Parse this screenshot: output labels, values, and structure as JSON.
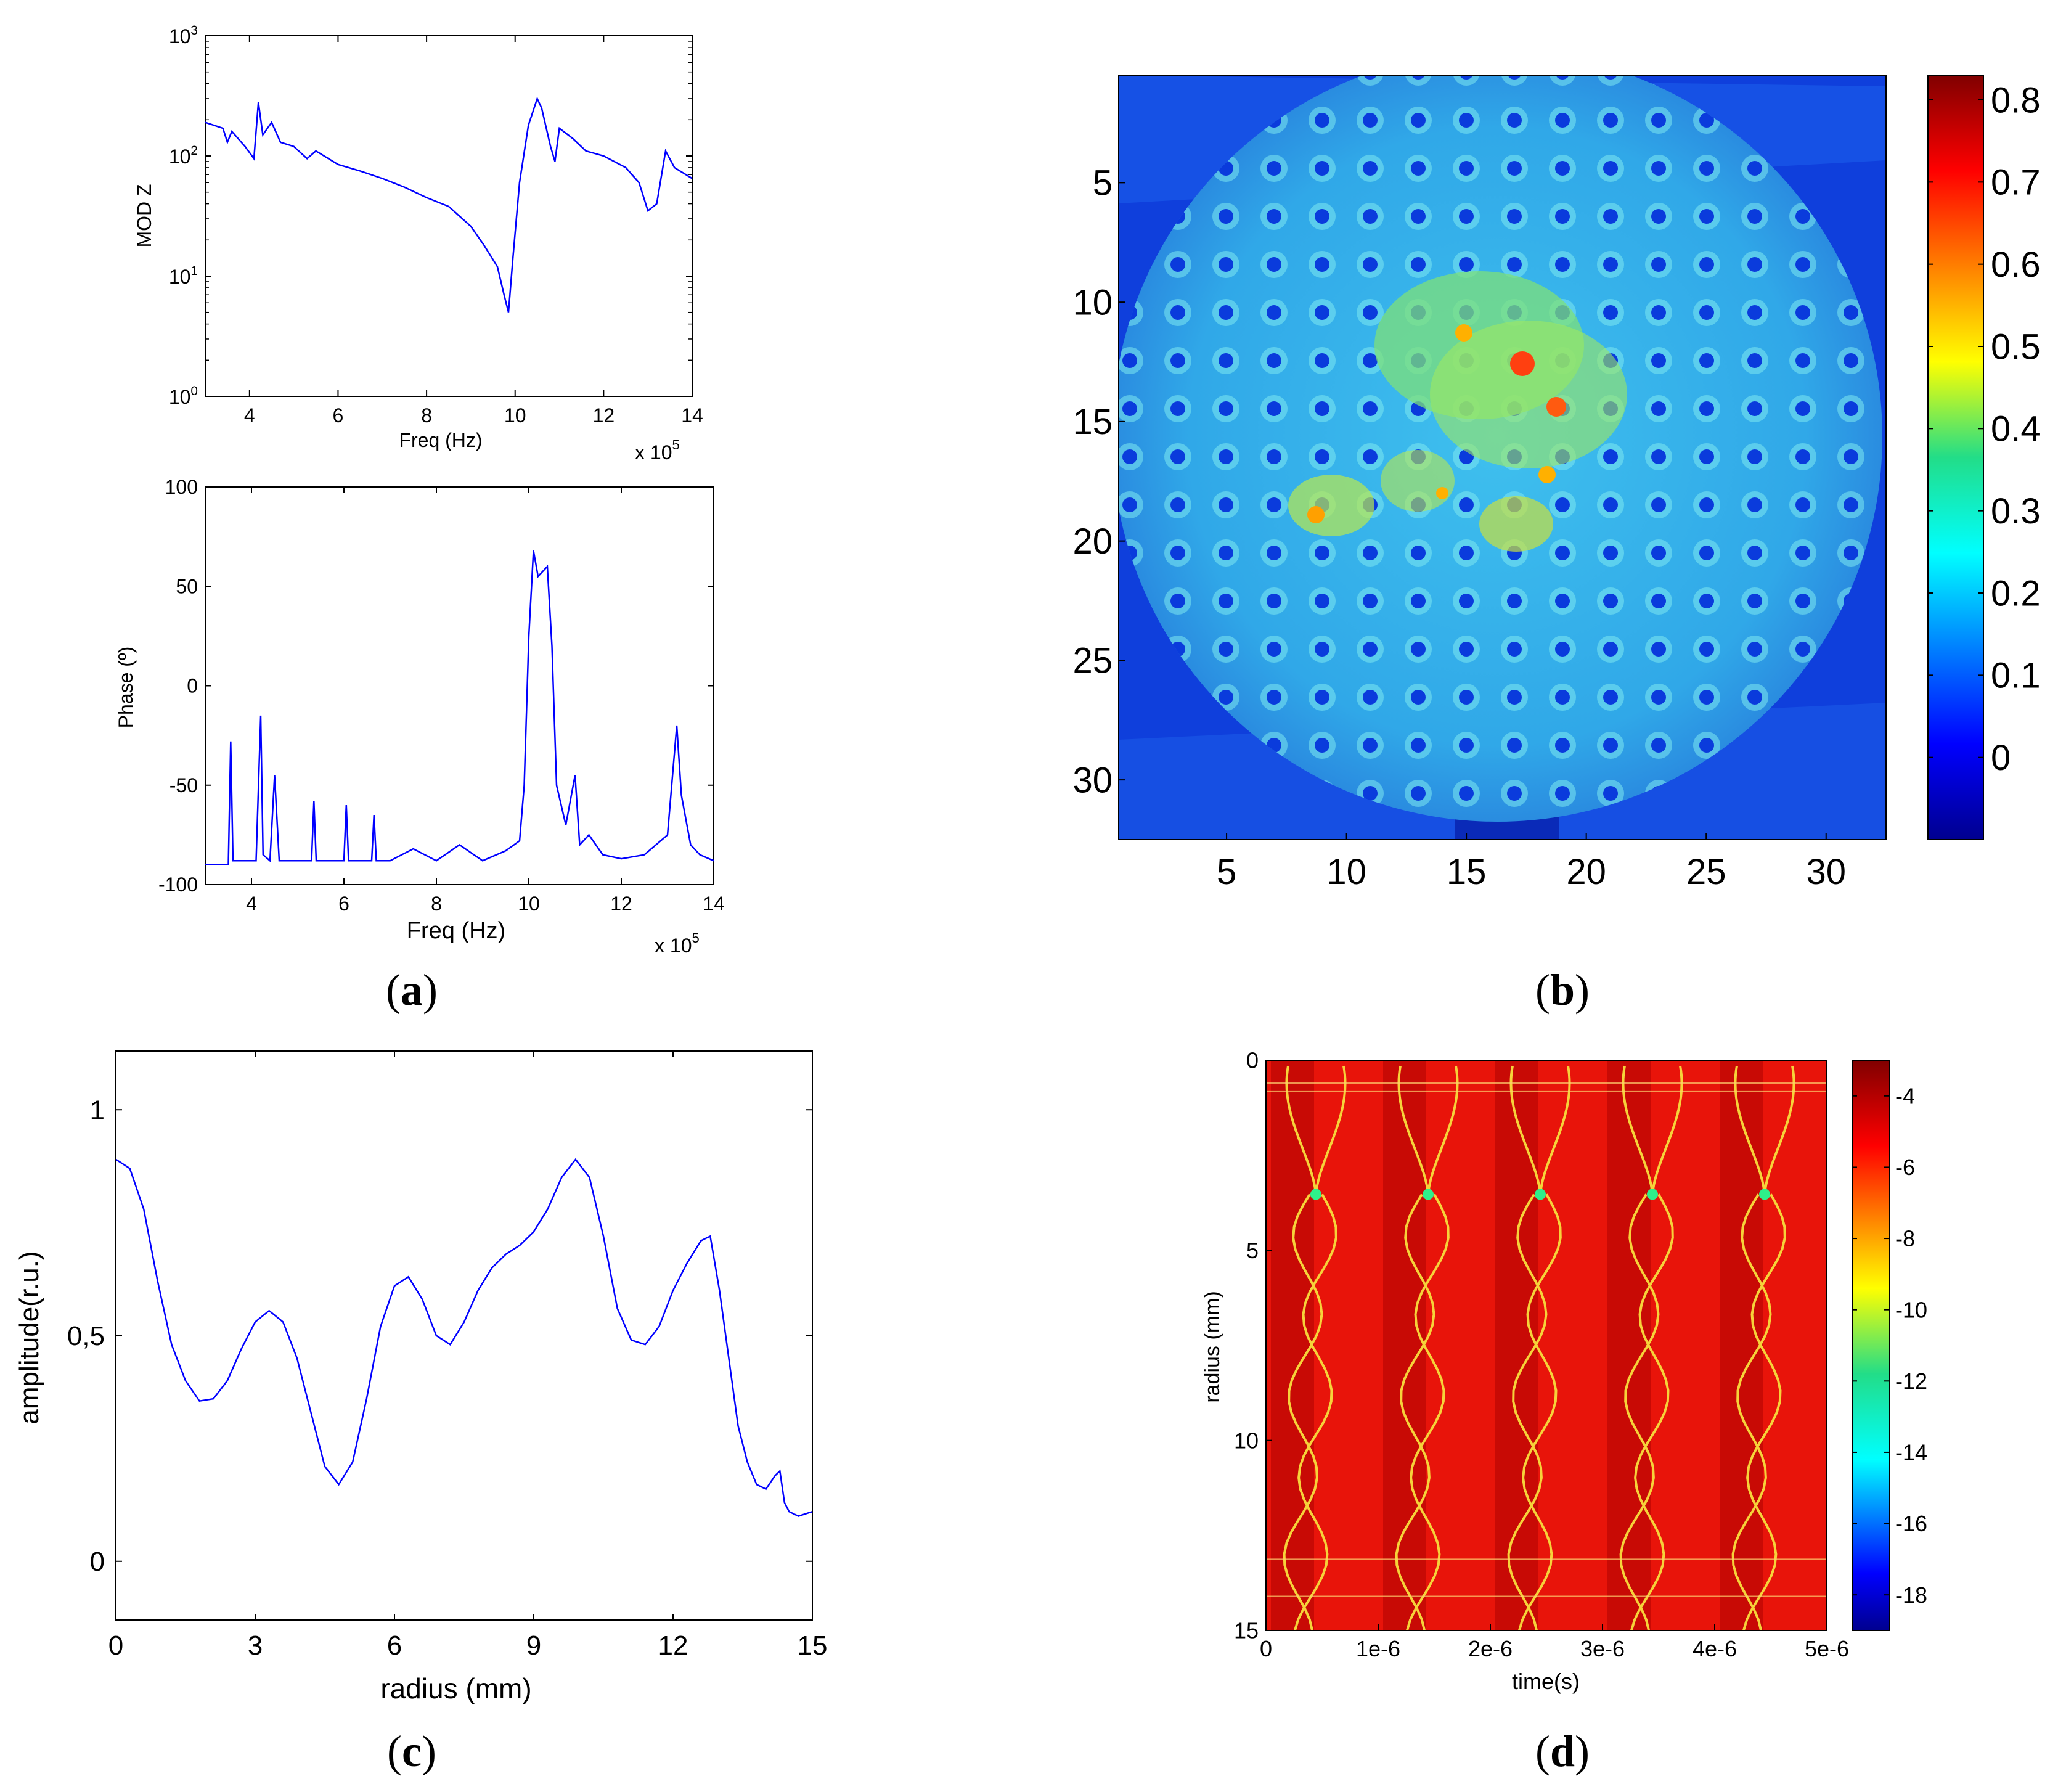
{
  "panel_labels": {
    "a": "a",
    "b": "b",
    "c": "c",
    "d": "d"
  },
  "chart_data": [
    {
      "id": "a1",
      "type": "line",
      "yscale": "log",
      "ylabel": "MOD Z",
      "xlabel": "Freq (Hz)",
      "xmult": "x 10",
      "xexp": "5",
      "xlim": [
        3,
        14
      ],
      "ylim": [
        1,
        1000
      ],
      "xticks": [
        "4",
        "6",
        "8",
        "10",
        "12",
        "14"
      ],
      "ytick_base": "10",
      "ytick_exps": [
        "0",
        "1",
        "2",
        "3"
      ],
      "color": "#0000ff",
      "x": [
        3.0,
        3.4,
        3.5,
        3.6,
        3.9,
        4.1,
        4.2,
        4.3,
        4.5,
        4.7,
        5.0,
        5.3,
        5.5,
        6.0,
        6.5,
        7.0,
        7.5,
        8.0,
        8.5,
        9.0,
        9.3,
        9.6,
        9.75,
        9.85,
        9.95,
        10.1,
        10.3,
        10.5,
        10.6,
        10.8,
        10.9,
        11.0,
        11.3,
        11.6,
        12.0,
        12.5,
        12.8,
        13.0,
        13.2,
        13.4,
        13.6,
        14.0
      ],
      "y": [
        190,
        170,
        130,
        160,
        120,
        95,
        280,
        150,
        190,
        130,
        120,
        95,
        110,
        85,
        75,
        65,
        55,
        45,
        38,
        26,
        18,
        12,
        7,
        5,
        14,
        60,
        180,
        300,
        250,
        120,
        90,
        170,
        140,
        110,
        100,
        80,
        60,
        35,
        40,
        110,
        80,
        65
      ]
    },
    {
      "id": "a2",
      "type": "line",
      "ylabel": "Phase (º)",
      "xlabel": "Freq (Hz)",
      "xmult": "x 10",
      "xexp": "5",
      "xlim": [
        3,
        14
      ],
      "ylim": [
        -100,
        100
      ],
      "xticks": [
        "4",
        "6",
        "8",
        "10",
        "12",
        "14"
      ],
      "yticks": [
        "-100",
        "-50",
        "0",
        "50",
        "100"
      ],
      "color": "#0000ff",
      "x": [
        3.0,
        3.5,
        3.55,
        3.6,
        4.1,
        4.2,
        4.25,
        4.4,
        4.5,
        4.6,
        5.3,
        5.35,
        5.4,
        6.0,
        6.05,
        6.1,
        6.6,
        6.65,
        6.7,
        7.0,
        7.5,
        8.0,
        8.5,
        9.0,
        9.5,
        9.8,
        9.9,
        10.0,
        10.1,
        10.2,
        10.4,
        10.5,
        10.6,
        10.8,
        11.0,
        11.1,
        11.3,
        11.6,
        12.0,
        12.5,
        13.0,
        13.2,
        13.3,
        13.5,
        13.7,
        14.0
      ],
      "y": [
        -90,
        -90,
        -28,
        -88,
        -88,
        -15,
        -85,
        -88,
        -45,
        -88,
        -88,
        -58,
        -88,
        -88,
        -60,
        -88,
        -88,
        -65,
        -88,
        -88,
        -82,
        -88,
        -80,
        -88,
        -83,
        -78,
        -50,
        25,
        68,
        55,
        60,
        20,
        -50,
        -70,
        -45,
        -80,
        -75,
        -85,
        -87,
        -85,
        -75,
        -20,
        -55,
        -80,
        -85,
        -88
      ]
    },
    {
      "id": "b",
      "type": "heatmap",
      "xticks": [
        "5",
        "10",
        "15",
        "20",
        "25",
        "30"
      ],
      "yticks": [
        "5",
        "10",
        "15",
        "20",
        "25",
        "30"
      ],
      "xlim": [
        0.5,
        32.5
      ],
      "ylim": [
        0.5,
        32.5
      ],
      "colorbar_ticks": [
        "0",
        "0.1",
        "0.2",
        "0.3",
        "0.4",
        "0.5",
        "0.6",
        "0.7",
        "0.8"
      ],
      "colorbar_range": [
        -0.1,
        0.83
      ],
      "colormap": "jet",
      "description_values": {
        "background": 0.0,
        "disc": 0.2,
        "holes": 0.02,
        "hotspots": 0.6
      }
    },
    {
      "id": "c",
      "type": "line",
      "ylabel": "amplitude(r.u.)",
      "xlabel": "radius (mm)",
      "xlim": [
        0,
        15
      ],
      "ylim": [
        -0.13,
        1.13
      ],
      "xticks": [
        "0",
        "3",
        "6",
        "9",
        "12",
        "15"
      ],
      "yticks": [
        "0",
        "0,5",
        "1"
      ],
      "color": "#0000ff",
      "x": [
        0,
        0.3,
        0.6,
        0.9,
        1.2,
        1.5,
        1.8,
        2.1,
        2.4,
        2.7,
        3.0,
        3.3,
        3.6,
        3.9,
        4.2,
        4.5,
        4.8,
        5.1,
        5.4,
        5.7,
        6.0,
        6.3,
        6.6,
        6.9,
        7.2,
        7.5,
        7.8,
        8.1,
        8.4,
        8.7,
        9.0,
        9.3,
        9.6,
        9.9,
        10.2,
        10.5,
        10.8,
        11.1,
        11.4,
        11.7,
        12.0,
        12.3,
        12.6,
        12.8,
        13.0,
        13.2,
        13.4,
        13.6,
        13.8,
        14.0,
        14.2,
        14.3,
        14.4,
        14.5,
        14.7,
        15.0
      ],
      "y": [
        0.89,
        0.87,
        0.78,
        0.62,
        0.48,
        0.4,
        0.355,
        0.36,
        0.4,
        0.47,
        0.53,
        0.555,
        0.53,
        0.45,
        0.33,
        0.21,
        0.17,
        0.22,
        0.36,
        0.52,
        0.61,
        0.63,
        0.58,
        0.5,
        0.48,
        0.53,
        0.6,
        0.65,
        0.68,
        0.7,
        0.73,
        0.78,
        0.85,
        0.89,
        0.85,
        0.72,
        0.56,
        0.49,
        0.48,
        0.52,
        0.6,
        0.66,
        0.71,
        0.72,
        0.6,
        0.45,
        0.3,
        0.22,
        0.17,
        0.16,
        0.19,
        0.2,
        0.13,
        0.11,
        0.1,
        0.11
      ]
    },
    {
      "id": "d",
      "type": "heatmap",
      "ylabel": "radius (mm)",
      "xlabel": "time(s)",
      "xlim": [
        0,
        5e-06
      ],
      "ylim": [
        0,
        15
      ],
      "xticks": [
        "0",
        "1e-6",
        "2e-6",
        "3e-6",
        "4e-6",
        "5e-6"
      ],
      "yticks": [
        "0",
        "5",
        "10",
        "15"
      ],
      "colorbar_ticks": [
        "-4",
        "-6",
        "-8",
        "-10",
        "-12",
        "-14",
        "-16",
        "-18"
      ],
      "colorbar_range": [
        -19,
        -3
      ],
      "colormap": "jet",
      "periods": 5
    }
  ]
}
